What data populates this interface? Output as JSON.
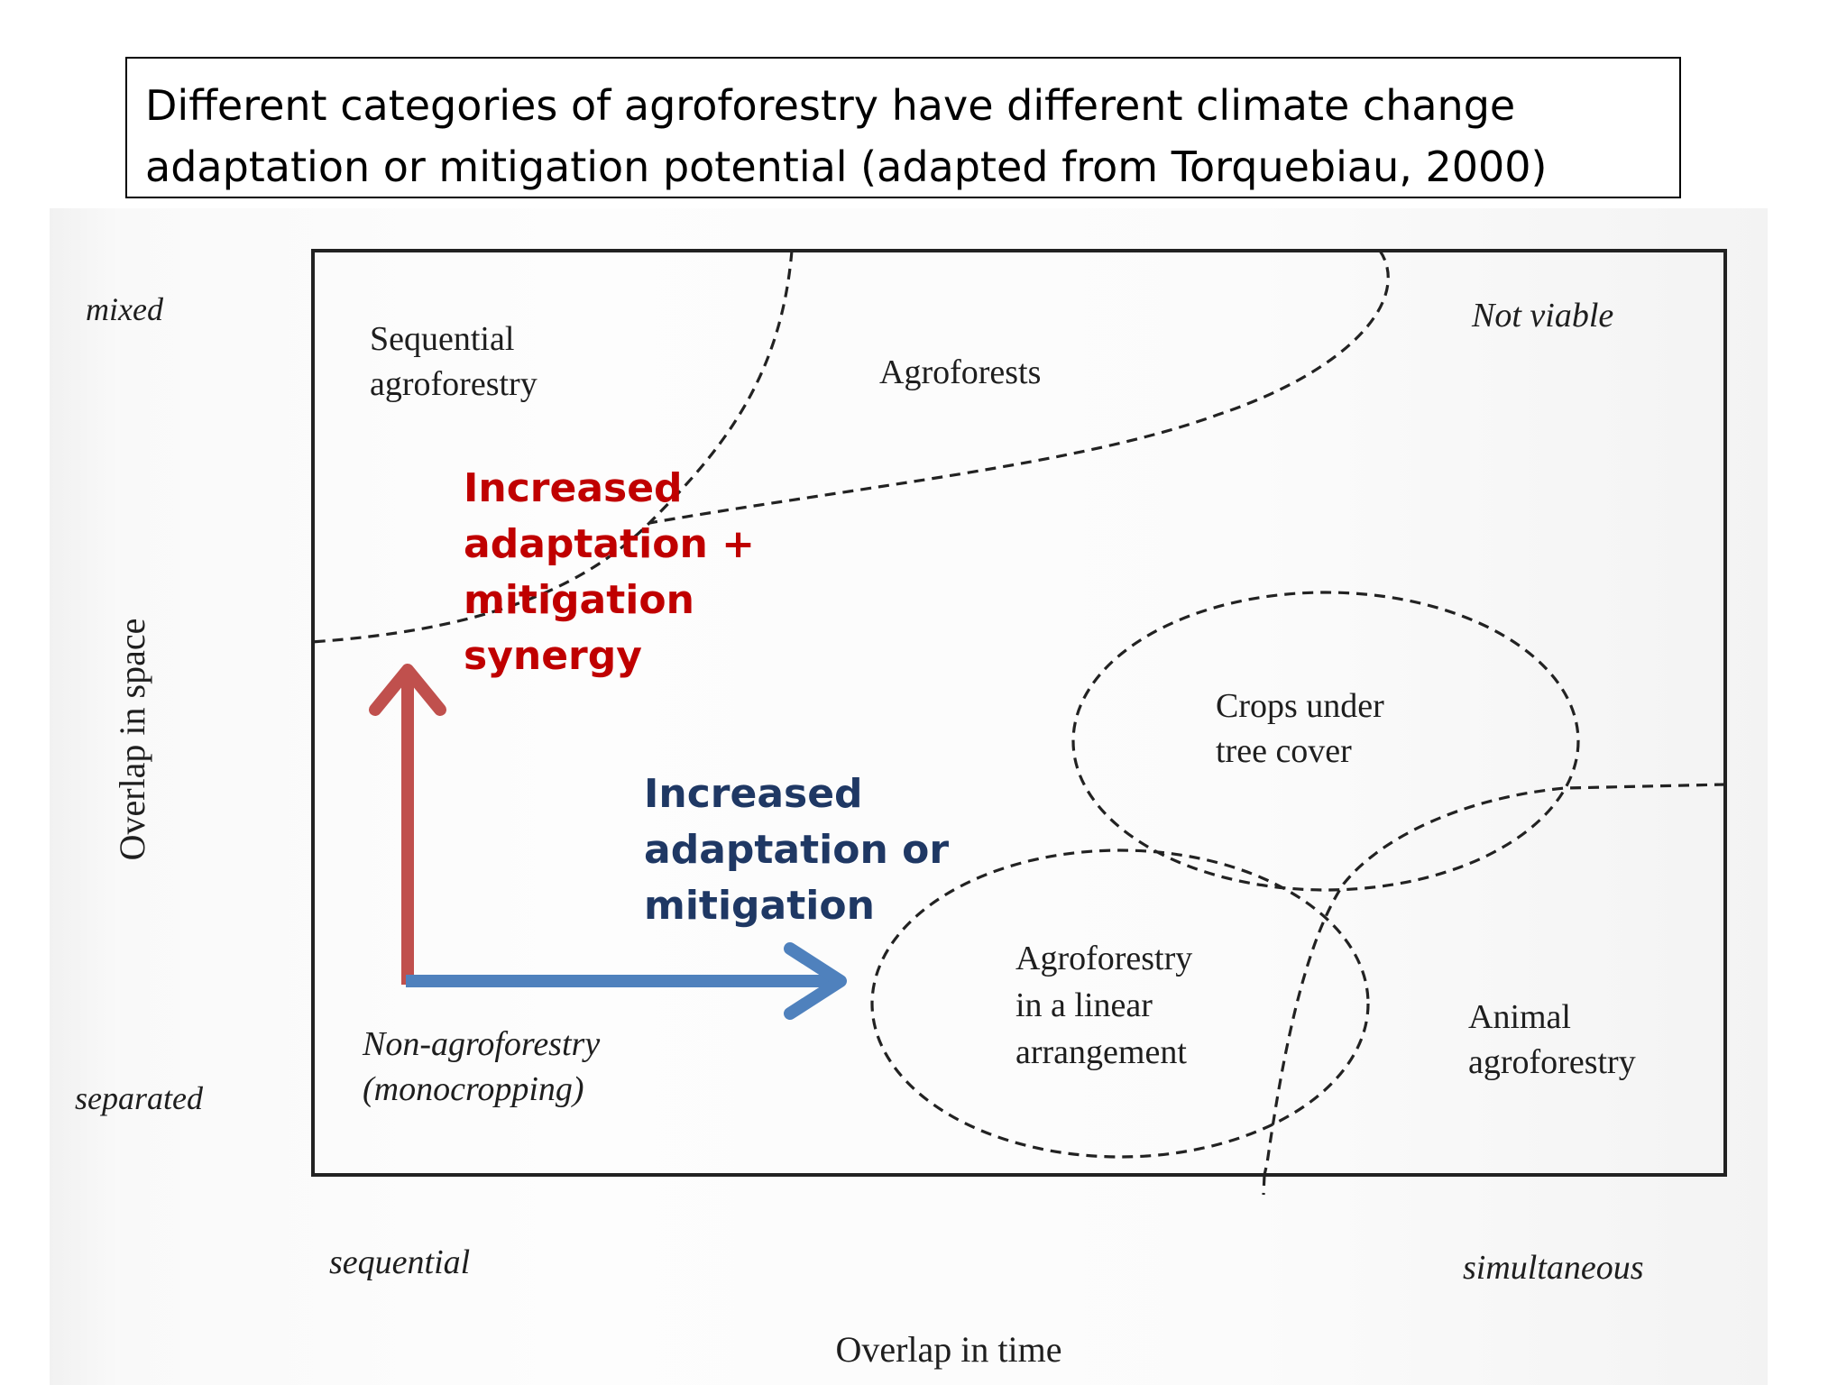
{
  "caption": {
    "line1": "Different categories of agroforestry have different climate change",
    "line2": "adaptation or mitigation potential (adapted from Torquebiau, 2000)"
  },
  "axes": {
    "y_label": "Overlap in space",
    "y_top": "mixed",
    "y_bottom": "separated",
    "x_label": "Overlap in time",
    "x_left": "sequential",
    "x_right": "simultaneous"
  },
  "regions": {
    "sequential": [
      "Sequential",
      "agroforestry"
    ],
    "agroforests": "Agroforests",
    "not_viable": "Not viable",
    "crops": [
      "Crops under",
      "tree cover"
    ],
    "linear": [
      "Agroforestry",
      "in a linear",
      "arrangement"
    ],
    "animal": [
      "Animal",
      "agroforestry"
    ],
    "non_agro": [
      "Non-agroforestry",
      "(monocropping)"
    ]
  },
  "arrows": {
    "red": [
      "Increased",
      "adaptation +",
      "mitigation",
      "synergy"
    ],
    "blue": [
      "Increased",
      "adaptation or",
      "mitigation"
    ]
  },
  "colors": {
    "red_arrow": "#c0504d",
    "red_text": "#c00000",
    "blue_arrow": "#4f81bd",
    "blue_text": "#1f3864"
  }
}
